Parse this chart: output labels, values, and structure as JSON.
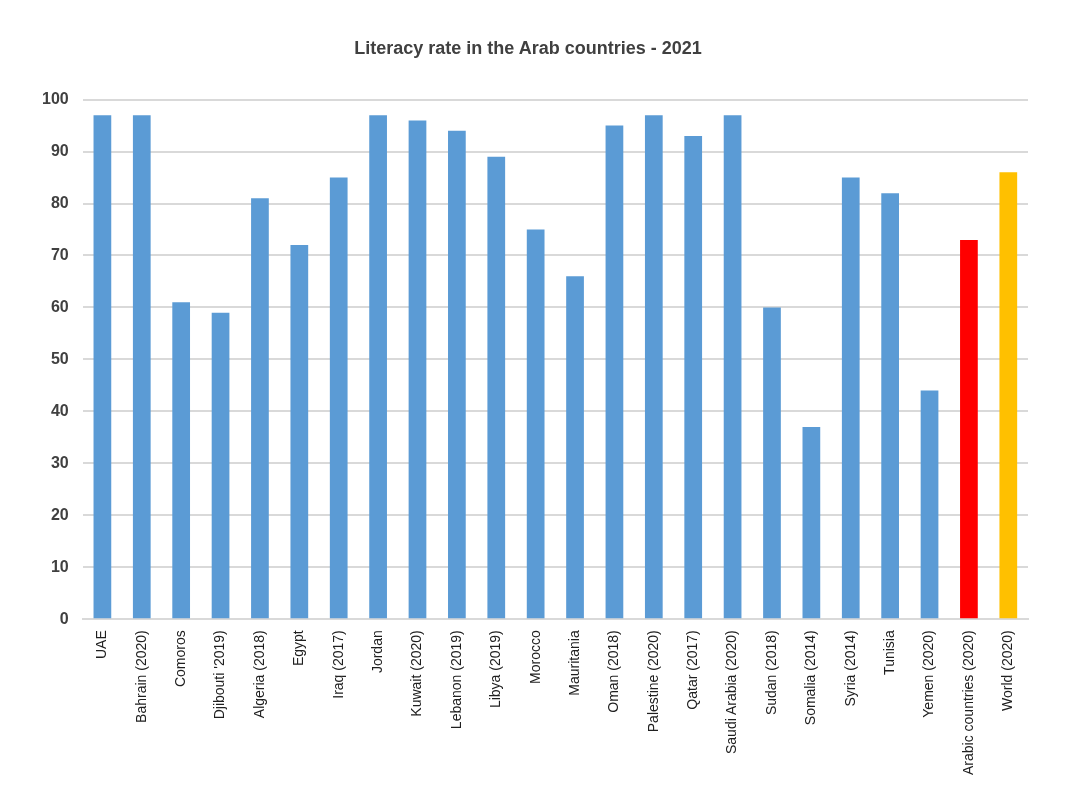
{
  "chart_data": {
    "type": "bar",
    "title": "Literacy rate in the Arab countries - 2021",
    "categories": [
      "UAE",
      "Bahrain (2020)",
      "Comoros",
      "Djibouti '2019)",
      "Algeria (2018)",
      "Egypt",
      "Iraq (2017)",
      "Jordan",
      "Kuwait (2020)",
      "Lebanon (2019)",
      "Libya (2019)",
      "Morocco",
      "Mauritania",
      "Oman (2018)",
      "Palestine (2020)",
      "Qatar (2017)",
      "Saudi Arabia (2020)",
      "Sudan (2018)",
      "Somalia (2014)",
      "Syria (2014)",
      "Tunisia",
      "Yemen (2020)",
      "Arabic countries (2020)",
      "World (2020)"
    ],
    "values": [
      97,
      97,
      61,
      59,
      81,
      72,
      85,
      97,
      96,
      94,
      89,
      75,
      66,
      95,
      97,
      93,
      97,
      60,
      37,
      85,
      82,
      44,
      73,
      86
    ],
    "colors": [
      "#5b9bd5",
      "#5b9bd5",
      "#5b9bd5",
      "#5b9bd5",
      "#5b9bd5",
      "#5b9bd5",
      "#5b9bd5",
      "#5b9bd5",
      "#5b9bd5",
      "#5b9bd5",
      "#5b9bd5",
      "#5b9bd5",
      "#5b9bd5",
      "#5b9bd5",
      "#5b9bd5",
      "#5b9bd5",
      "#5b9bd5",
      "#5b9bd5",
      "#5b9bd5",
      "#5b9bd5",
      "#5b9bd5",
      "#5b9bd5",
      "#ff0000",
      "#ffc000"
    ],
    "ylim": [
      0,
      100
    ],
    "yticks": [
      0,
      10,
      20,
      30,
      40,
      50,
      60,
      70,
      80,
      90,
      100
    ],
    "grid": "y",
    "legend": false
  }
}
